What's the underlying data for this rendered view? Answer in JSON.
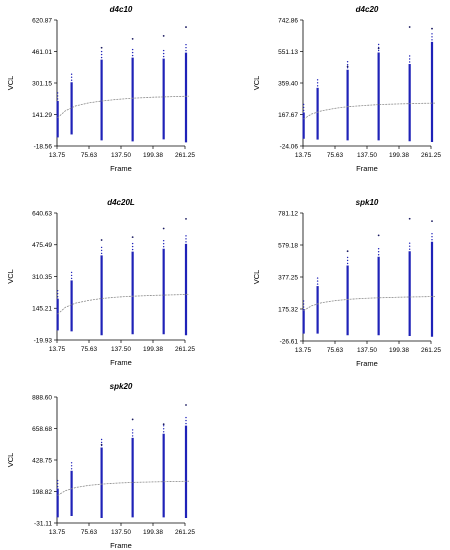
{
  "chart_data": [
    {
      "type": "scatter",
      "title": "d4c10",
      "xlabel": "Frame",
      "ylabel": "VCL",
      "x_ticks": [
        "13.75",
        "75.63",
        "137.50",
        "199.38",
        "261.25"
      ],
      "y_ticks": [
        "-18.56",
        "141.29",
        "301.15",
        "461.01",
        "620.87"
      ],
      "xlim": [
        13.75,
        261.25
      ],
      "ylim": [
        -18.56,
        620.87
      ],
      "grid": false,
      "series": [
        {
          "values": [
            {
              "x": 15,
              "min": 25,
              "max": 210
            },
            {
              "x": 42,
              "min": 40,
              "max": 305
            },
            {
              "x": 100,
              "min": 10,
              "max": 420
            },
            {
              "x": 160,
              "min": 5,
              "max": 430
            },
            {
              "x": 220,
              "min": 15,
              "max": 425
            },
            {
              "x": 265,
              "min": 0,
              "max": 455
            }
          ]
        },
        {
          "values": [
            {
              "x": 15,
              "y": 125
            },
            {
              "x": 30,
              "y": 160
            },
            {
              "x": 50,
              "y": 185
            },
            {
              "x": 75,
              "y": 200
            },
            {
              "x": 100,
              "y": 210
            },
            {
              "x": 130,
              "y": 218
            },
            {
              "x": 160,
              "y": 224
            },
            {
              "x": 200,
              "y": 229
            },
            {
              "x": 240,
              "y": 232
            },
            {
              "x": 270,
              "y": 234
            }
          ]
        }
      ],
      "outliers": [
        {
          "x": 100,
          "y": 480
        },
        {
          "x": 160,
          "y": 525
        },
        {
          "x": 220,
          "y": 540
        },
        {
          "x": 265,
          "y": 585
        }
      ]
    },
    {
      "type": "scatter",
      "title": "d4c20",
      "xlabel": "Frame",
      "ylabel": "VCL",
      "x_ticks": [
        "13.75",
        "75.63",
        "137.50",
        "199.38",
        "261.25"
      ],
      "y_ticks": [
        "-24.06",
        "167.67",
        "359.40",
        "551.13",
        "742.86"
      ],
      "xlim": [
        13.75,
        261.25
      ],
      "ylim": [
        -24.06,
        742.86
      ],
      "grid": false,
      "series": [
        {
          "values": [
            {
              "x": 15,
              "min": 20,
              "max": 180
            },
            {
              "x": 42,
              "min": 15,
              "max": 330
            },
            {
              "x": 100,
              "min": 10,
              "max": 440
            },
            {
              "x": 160,
              "min": 10,
              "max": 545
            },
            {
              "x": 220,
              "min": 5,
              "max": 475
            },
            {
              "x": 265,
              "min": 0,
              "max": 610
            }
          ]
        },
        {
          "values": [
            {
              "x": 15,
              "y": 140
            },
            {
              "x": 30,
              "y": 170
            },
            {
              "x": 50,
              "y": 190
            },
            {
              "x": 75,
              "y": 205
            },
            {
              "x": 100,
              "y": 215
            },
            {
              "x": 130,
              "y": 222
            },
            {
              "x": 160,
              "y": 228
            },
            {
              "x": 200,
              "y": 232
            },
            {
              "x": 240,
              "y": 235
            },
            {
              "x": 270,
              "y": 237
            }
          ]
        }
      ],
      "outliers": [
        {
          "x": 100,
          "y": 460
        },
        {
          "x": 160,
          "y": 570
        },
        {
          "x": 220,
          "y": 700
        },
        {
          "x": 265,
          "y": 690
        }
      ]
    },
    {
      "type": "scatter",
      "title": "d4c20L",
      "xlabel": "Frame",
      "ylabel": "VCL",
      "x_ticks": [
        "13.75",
        "75.63",
        "137.50",
        "199.38",
        "261.25"
      ],
      "y_ticks": [
        "-19.93",
        "145.21",
        "310.35",
        "475.49",
        "640.63"
      ],
      "xlim": [
        13.75,
        261.25
      ],
      "ylim": [
        -19.93,
        640.63
      ],
      "grid": false,
      "series": [
        {
          "values": [
            {
              "x": 15,
              "min": 30,
              "max": 195
            },
            {
              "x": 42,
              "min": 25,
              "max": 290
            },
            {
              "x": 100,
              "min": 5,
              "max": 420
            },
            {
              "x": 160,
              "min": 10,
              "max": 440
            },
            {
              "x": 220,
              "min": 10,
              "max": 455
            },
            {
              "x": 265,
              "min": 5,
              "max": 480
            }
          ]
        },
        {
          "values": [
            {
              "x": 15,
              "y": 115
            },
            {
              "x": 30,
              "y": 150
            },
            {
              "x": 50,
              "y": 172
            },
            {
              "x": 75,
              "y": 186
            },
            {
              "x": 100,
              "y": 196
            },
            {
              "x": 130,
              "y": 203
            },
            {
              "x": 160,
              "y": 208
            },
            {
              "x": 200,
              "y": 212
            },
            {
              "x": 240,
              "y": 215
            },
            {
              "x": 270,
              "y": 217
            }
          ]
        }
      ],
      "outliers": [
        {
          "x": 100,
          "y": 500
        },
        {
          "x": 160,
          "y": 515
        },
        {
          "x": 220,
          "y": 560
        },
        {
          "x": 265,
          "y": 610
        }
      ]
    },
    {
      "type": "scatter",
      "title": "spk10",
      "xlabel": "Frame",
      "ylabel": "VCL",
      "x_ticks": [
        "13.75",
        "75.63",
        "137.50",
        "199.38",
        "261.25"
      ],
      "y_ticks": [
        "-26.61",
        "175.32",
        "377.25",
        "579.18",
        "781.12"
      ],
      "xlim": [
        13.75,
        261.25
      ],
      "ylim": [
        -26.61,
        781.12
      ],
      "grid": false,
      "series": [
        {
          "values": [
            {
              "x": 15,
              "min": 20,
              "max": 175
            },
            {
              "x": 42,
              "min": 20,
              "max": 320
            },
            {
              "x": 100,
              "min": 10,
              "max": 450
            },
            {
              "x": 160,
              "min": 10,
              "max": 505
            },
            {
              "x": 220,
              "min": 5,
              "max": 540
            },
            {
              "x": 265,
              "min": 0,
              "max": 600
            }
          ]
        },
        {
          "values": [
            {
              "x": 15,
              "y": 165
            },
            {
              "x": 30,
              "y": 195
            },
            {
              "x": 50,
              "y": 215
            },
            {
              "x": 75,
              "y": 228
            },
            {
              "x": 100,
              "y": 236
            },
            {
              "x": 130,
              "y": 242
            },
            {
              "x": 160,
              "y": 246
            },
            {
              "x": 200,
              "y": 250
            },
            {
              "x": 240,
              "y": 252
            },
            {
              "x": 270,
              "y": 254
            }
          ]
        }
      ],
      "outliers": [
        {
          "x": 100,
          "y": 540
        },
        {
          "x": 160,
          "y": 640
        },
        {
          "x": 220,
          "y": 745
        },
        {
          "x": 265,
          "y": 730
        }
      ]
    },
    {
      "type": "scatter",
      "title": "spk20",
      "xlabel": "Frame",
      "ylabel": "VCL",
      "x_ticks": [
        "13.75",
        "75.63",
        "137.50",
        "199.38",
        "261.25"
      ],
      "y_ticks": [
        "-31.11",
        "198.82",
        "428.75",
        "658.68",
        "888.60"
      ],
      "xlim": [
        13.75,
        261.25
      ],
      "ylim": [
        -31.11,
        888.6
      ],
      "grid": false,
      "series": [
        {
          "values": [
            {
              "x": 15,
              "min": 10,
              "max": 220
            },
            {
              "x": 42,
              "min": 20,
              "max": 350
            },
            {
              "x": 100,
              "min": 5,
              "max": 520
            },
            {
              "x": 160,
              "min": 10,
              "max": 590
            },
            {
              "x": 220,
              "min": 10,
              "max": 620
            },
            {
              "x": 265,
              "min": 5,
              "max": 680
            }
          ]
        },
        {
          "values": [
            {
              "x": 15,
              "y": 170
            },
            {
              "x": 30,
              "y": 205
            },
            {
              "x": 50,
              "y": 228
            },
            {
              "x": 75,
              "y": 243
            },
            {
              "x": 100,
              "y": 253
            },
            {
              "x": 130,
              "y": 260
            },
            {
              "x": 160,
              "y": 265
            },
            {
              "x": 200,
              "y": 269
            },
            {
              "x": 240,
              "y": 272
            },
            {
              "x": 270,
              "y": 274
            }
          ]
        }
      ],
      "outliers": [
        {
          "x": 100,
          "y": 540
        },
        {
          "x": 160,
          "y": 725
        },
        {
          "x": 220,
          "y": 690
        },
        {
          "x": 265,
          "y": 830
        }
      ]
    }
  ],
  "colors": {
    "bar": "#1f22b8",
    "trend": "#8a8a8a",
    "outlier": "#1a1a60",
    "axis": "#000000"
  }
}
